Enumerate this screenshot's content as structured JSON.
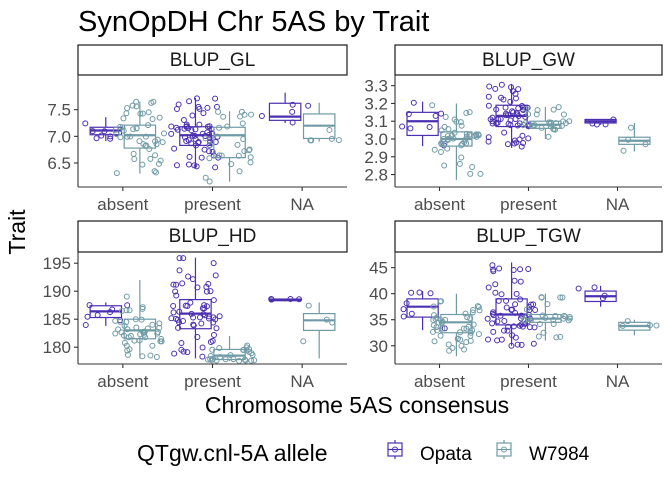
{
  "colors": {
    "opata": "#4a2fb0",
    "w7984": "#6f9aa6"
  },
  "chart_data": {
    "type": "boxplot",
    "title": "SynOpDH Chr 5AS by Trait",
    "xlabel": "Chromosome 5AS consensus",
    "ylabel": "Trait",
    "categories": [
      "absent",
      "present",
      "NA"
    ],
    "legend": {
      "title": "QTgw.cnl-5A allele",
      "entries": [
        "Opata",
        "W7984"
      ],
      "position": "bottom"
    },
    "panels": [
      {
        "name": "BLUP_GL",
        "ylim": [
          6.05,
          8.15
        ],
        "yticks": [
          6.5,
          7.0,
          7.5
        ],
        "ytick_labels": [
          "6.5",
          "7.0",
          "7.5"
        ],
        "boxes": [
          {
            "category": "absent",
            "allele": "Opata",
            "q1": 7.03,
            "median": 7.11,
            "q3": 7.17,
            "lo": 6.91,
            "hi": 7.36,
            "n": 8
          },
          {
            "category": "absent",
            "allele": "W7984",
            "q1": 6.78,
            "median": 7.02,
            "q3": 7.21,
            "lo": 6.3,
            "hi": 7.65,
            "n": 46
          },
          {
            "category": "present",
            "allele": "Opata",
            "q1": 6.83,
            "median": 7.02,
            "q3": 7.18,
            "lo": 6.4,
            "hi": 7.72,
            "n": 60
          },
          {
            "category": "present",
            "allele": "W7984",
            "q1": 6.6,
            "median": 7.02,
            "q3": 7.17,
            "lo": 6.15,
            "hi": 7.47,
            "n": 26
          },
          {
            "category": "NA",
            "allele": "Opata",
            "q1": 7.3,
            "median": 7.37,
            "q3": 7.62,
            "lo": 7.25,
            "hi": 7.82,
            "n": 5
          },
          {
            "category": "NA",
            "allele": "W7984",
            "q1": 6.96,
            "median": 7.2,
            "q3": 7.42,
            "lo": 6.9,
            "hi": 7.63,
            "n": 5
          }
        ]
      },
      {
        "name": "BLUP_GW",
        "ylim": [
          2.73,
          3.36
        ],
        "yticks": [
          2.8,
          2.9,
          3.0,
          3.1,
          3.2,
          3.3
        ],
        "ytick_labels": [
          "2.8",
          "2.9",
          "3.0",
          "3.1",
          "3.2",
          "3.3"
        ],
        "boxes": [
          {
            "category": "absent",
            "allele": "Opata",
            "q1": 3.02,
            "median": 3.1,
            "q3": 3.15,
            "lo": 2.96,
            "hi": 3.21,
            "n": 8
          },
          {
            "category": "absent",
            "allele": "W7984",
            "q1": 2.96,
            "median": 3.0,
            "q3": 3.04,
            "lo": 2.77,
            "hi": 3.2,
            "n": 46
          },
          {
            "category": "present",
            "allele": "Opata",
            "q1": 3.07,
            "median": 3.13,
            "q3": 3.19,
            "lo": 2.95,
            "hi": 3.31,
            "n": 60
          },
          {
            "category": "present",
            "allele": "W7984",
            "q1": 3.06,
            "median": 3.08,
            "q3": 3.1,
            "lo": 3.0,
            "hi": 3.18,
            "n": 26
          },
          {
            "category": "NA",
            "allele": "Opata",
            "q1": 3.09,
            "median": 3.1,
            "q3": 3.11,
            "lo": 3.08,
            "hi": 3.11,
            "n": 4
          },
          {
            "category": "NA",
            "allele": "W7984",
            "q1": 2.97,
            "median": 2.99,
            "q3": 3.01,
            "lo": 2.93,
            "hi": 3.09,
            "n": 4
          }
        ]
      },
      {
        "name": "BLUP_HD",
        "ylim": [
          177.0,
          197.0
        ],
        "yticks": [
          180,
          185,
          190,
          195
        ],
        "ytick_labels": [
          "180",
          "185",
          "190",
          "195"
        ],
        "boxes": [
          {
            "category": "absent",
            "allele": "Opata",
            "q1": 185.3,
            "median": 186.4,
            "q3": 187.4,
            "lo": 183.8,
            "hi": 188.0,
            "n": 8
          },
          {
            "category": "absent",
            "allele": "W7984",
            "q1": 181.5,
            "median": 183.0,
            "q3": 185.0,
            "lo": 178.0,
            "hi": 192.0,
            "n": 46
          },
          {
            "category": "present",
            "allele": "Opata",
            "q1": 183.3,
            "median": 186.0,
            "q3": 188.5,
            "lo": 178.0,
            "hi": 196.0,
            "n": 60
          },
          {
            "category": "present",
            "allele": "W7984",
            "q1": 177.8,
            "median": 178.5,
            "q3": 179.6,
            "lo": 177.5,
            "hi": 182.0,
            "n": 26
          },
          {
            "category": "NA",
            "allele": "Opata",
            "q1": 188.3,
            "median": 188.5,
            "q3": 188.6,
            "lo": 188.2,
            "hi": 188.6,
            "n": 4
          },
          {
            "category": "NA",
            "allele": "W7984",
            "q1": 183.0,
            "median": 184.8,
            "q3": 186.0,
            "lo": 178.0,
            "hi": 188.0,
            "n": 4
          }
        ]
      },
      {
        "name": "BLUP_TGW",
        "ylim": [
          26.5,
          48.0
        ],
        "yticks": [
          30,
          35,
          40,
          45
        ],
        "ytick_labels": [
          "30",
          "35",
          "40",
          "45"
        ],
        "boxes": [
          {
            "category": "absent",
            "allele": "Opata",
            "q1": 35.5,
            "median": 37.5,
            "q3": 39.0,
            "lo": 33.0,
            "hi": 40.5,
            "n": 8
          },
          {
            "category": "absent",
            "allele": "W7984",
            "q1": 32.5,
            "median": 34.5,
            "q3": 36.0,
            "lo": 28.0,
            "hi": 40.0,
            "n": 46
          },
          {
            "category": "present",
            "allele": "Opata",
            "q1": 34.0,
            "median": 36.0,
            "q3": 39.0,
            "lo": 30.0,
            "hi": 46.0,
            "n": 60
          },
          {
            "category": "present",
            "allele": "W7984",
            "q1": 34.5,
            "median": 35.2,
            "q3": 36.0,
            "lo": 31.0,
            "hi": 40.0,
            "n": 26
          },
          {
            "category": "NA",
            "allele": "Opata",
            "q1": 38.5,
            "median": 39.5,
            "q3": 40.5,
            "lo": 37.5,
            "hi": 41.5,
            "n": 4
          },
          {
            "category": "NA",
            "allele": "W7984",
            "q1": 33.0,
            "median": 33.8,
            "q3": 34.5,
            "lo": 32.0,
            "hi": 35.0,
            "n": 4
          }
        ]
      }
    ]
  }
}
